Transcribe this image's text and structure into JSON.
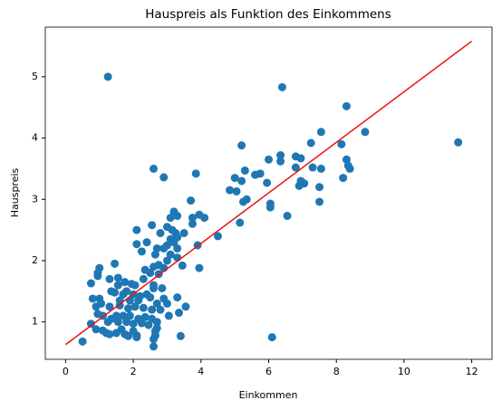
{
  "chart_data": {
    "type": "scatter",
    "title": "Hauspreis als Funktion des Einkommens",
    "x_label": "Einkommen",
    "y_label": "Hauspreis",
    "xlim": [
      -0.6,
      12.6
    ],
    "ylim": [
      0.39,
      5.81
    ],
    "xticks": [
      0,
      2,
      4,
      6,
      8,
      10,
      12
    ],
    "yticks": [
      1,
      2,
      3,
      4,
      5
    ],
    "series": [
      {
        "color": "#1f77b4",
        "x": [
          1.25,
          6.4,
          8.3,
          8.85,
          11.6,
          7.55,
          7.25,
          8.15,
          6.35,
          6.35,
          5.2,
          6.0,
          6.8,
          6.95,
          8.3,
          8.35,
          8.4,
          7.3,
          7.55,
          6.8,
          5.95,
          5.6,
          5.3,
          5.75,
          5.2,
          6.95,
          7.05,
          6.9,
          7.5,
          8.2,
          5.0,
          4.85,
          5.05,
          5.35,
          5.25,
          6.05,
          6.05,
          7.5,
          6.55,
          5.15,
          2.6,
          2.9,
          3.85,
          3.7,
          4.5,
          3.95,
          4.1,
          3.75,
          3.75,
          3.3,
          3.2,
          3.1,
          3.0,
          3.15,
          3.25,
          3.5,
          3.3,
          3.1,
          3.2,
          3.0,
          2.9,
          2.7,
          3.3,
          3.9,
          2.55,
          2.1,
          2.8,
          2.4,
          2.1,
          2.25,
          2.65,
          3.1,
          3.3,
          3.0,
          2.75,
          2.6,
          2.9,
          2.5,
          2.35,
          2.75,
          3.45,
          3.95,
          1.45,
          1.0,
          0.95,
          0.95,
          0.75,
          1.3,
          1.55,
          1.55,
          1.75,
          1.95,
          2.05,
          2.3,
          2.6,
          2.6,
          2.85,
          1.8,
          1.35,
          1.45,
          1.7,
          2.0,
          2.2,
          2.4,
          2.5,
          2.9,
          3.0,
          3.3,
          3.55,
          3.35,
          2.7,
          2.15,
          1.9,
          1.6,
          0.8,
          1.0,
          1.05,
          0.9,
          1.3,
          1.6,
          1.85,
          2.05,
          2.3,
          2.55,
          2.8,
          3.05,
          1.1,
          1.35,
          1.5,
          1.7,
          1.9,
          2.15,
          2.35,
          2.55,
          2.7,
          0.95,
          0.75,
          1.25,
          1.55,
          1.8,
          2.0,
          2.25,
          2.45,
          0.9,
          1.1,
          1.65,
          2.0,
          2.65,
          2.7,
          1.2,
          1.5,
          1.75,
          2.1,
          2.6,
          2.65,
          3.4,
          2.1,
          0.5,
          2.6,
          6.1,
          1.3,
          1.85
        ],
        "values": [
          5.0,
          4.83,
          4.52,
          4.1,
          3.93,
          4.1,
          3.92,
          3.9,
          3.72,
          3.62,
          3.88,
          3.65,
          3.7,
          3.67,
          3.65,
          3.55,
          3.5,
          3.52,
          3.5,
          3.52,
          3.27,
          3.4,
          3.47,
          3.42,
          3.3,
          3.3,
          3.26,
          3.22,
          3.2,
          3.35,
          3.35,
          3.15,
          3.13,
          3.0,
          2.96,
          2.93,
          2.87,
          2.96,
          2.73,
          2.62,
          3.5,
          3.36,
          3.42,
          2.98,
          2.4,
          2.75,
          2.7,
          2.7,
          2.6,
          2.73,
          2.8,
          2.7,
          2.55,
          2.5,
          2.45,
          2.45,
          2.38,
          2.35,
          2.3,
          2.25,
          2.2,
          2.2,
          2.2,
          2.25,
          2.58,
          2.5,
          2.45,
          2.3,
          2.27,
          2.15,
          2.1,
          2.1,
          2.05,
          2.0,
          1.93,
          1.9,
          1.88,
          1.8,
          1.85,
          1.78,
          1.92,
          1.88,
          1.95,
          1.88,
          1.8,
          1.75,
          1.63,
          1.7,
          1.72,
          1.6,
          1.65,
          1.62,
          1.6,
          1.7,
          1.6,
          1.55,
          1.55,
          1.5,
          1.5,
          1.48,
          1.45,
          1.45,
          1.42,
          1.45,
          1.4,
          1.38,
          1.3,
          1.4,
          1.25,
          1.15,
          1.3,
          1.35,
          1.35,
          1.35,
          1.38,
          1.38,
          1.3,
          1.25,
          1.25,
          1.27,
          1.22,
          1.25,
          1.23,
          1.2,
          1.2,
          1.1,
          1.1,
          1.05,
          1.1,
          1.1,
          1.1,
          1.05,
          1.08,
          1.05,
          1.0,
          1.13,
          0.97,
          1.0,
          1.0,
          1.0,
          0.97,
          0.98,
          0.95,
          0.88,
          0.86,
          0.88,
          0.85,
          0.85,
          0.9,
          0.82,
          0.82,
          0.8,
          0.78,
          0.72,
          0.78,
          0.77,
          0.75,
          0.68,
          0.6,
          0.75,
          0.8,
          0.77
        ]
      }
    ],
    "fit_line": {
      "color": "#ee1111",
      "x": [
        0,
        12
      ],
      "values": [
        0.63,
        5.58
      ]
    }
  }
}
